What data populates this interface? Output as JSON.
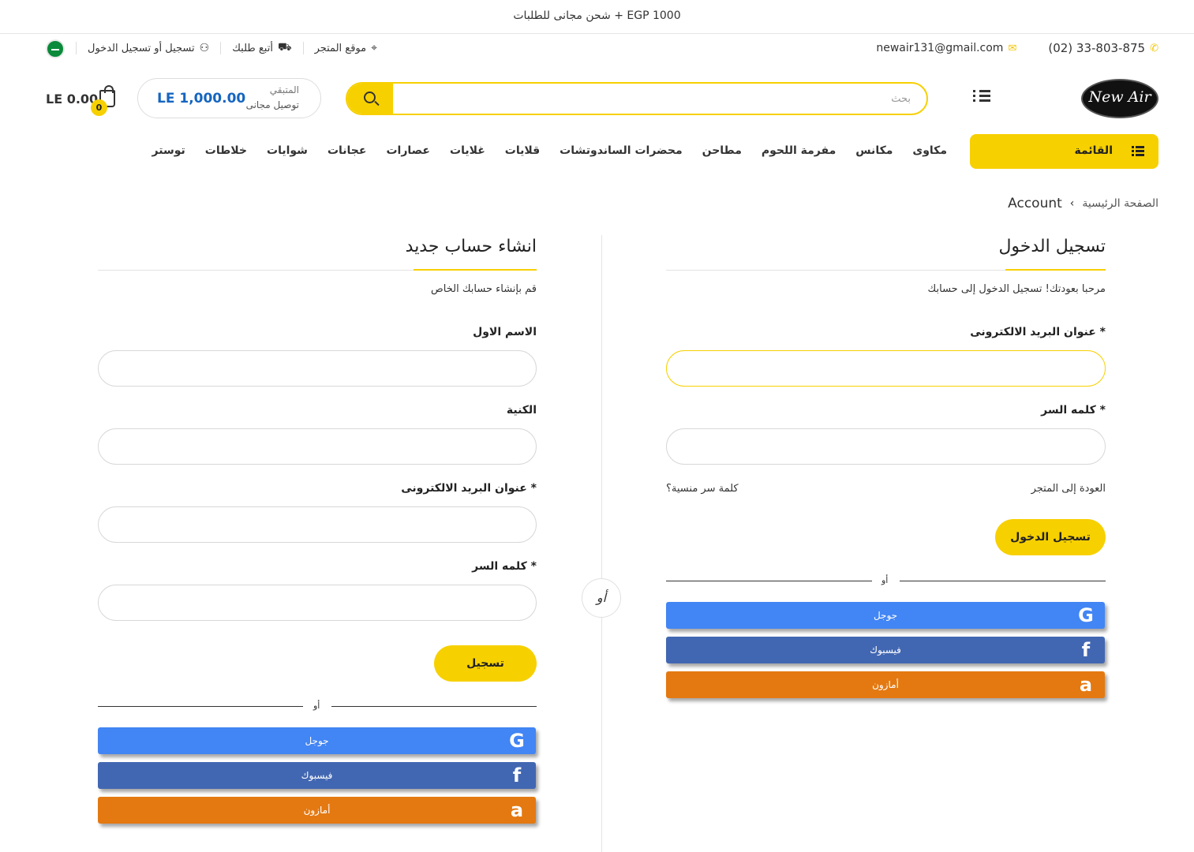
{
  "announcement": "شحن مجانى للطلبات + EGP 1000",
  "topbar": {
    "phone": "(02) 33-803-875",
    "email": "newair131@gmail.com",
    "store_location": "موقع المتجر",
    "track_order": "أتبع طلبك",
    "login_register": "تسجيل أو تسجيل الدخول"
  },
  "header": {
    "logo_text": "New Air",
    "search_placeholder": "بحث",
    "shipping": {
      "line1": "المتبقي",
      "line2": "توصيل مجانى",
      "amount": "LE 1,000.00"
    },
    "cart": {
      "total": "LE 0.00",
      "count": "0"
    }
  },
  "nav": {
    "categories_label": "القائمة",
    "links": [
      "مكاوى",
      "مكانس",
      "مفرمة اللحوم",
      "مطاحن",
      "محضرات الساندوتشات",
      "قلايات",
      "غلايات",
      "عصارات",
      "عجانات",
      "شوايات",
      "خلاطات",
      "توستر"
    ]
  },
  "breadcrumb": {
    "home": "الصفحة الرئيسية",
    "current": "Account"
  },
  "login": {
    "title": "تسجيل الدخول",
    "subtitle": "مرحبا بعودتك! تسجيل الدخول إلى حسابك",
    "email_label": "عنوان البريد الالكترونى *",
    "password_label": "كلمه السر *",
    "back_to_store": "العودة إلى المتجر",
    "forgot_password": "كلمة سر منسية؟",
    "submit": "تسجيل الدخول",
    "or": "أو",
    "google": "جوجل",
    "facebook": "فيسبوك",
    "amazon": "أمازون"
  },
  "or_center": "أو",
  "register": {
    "title": "انشاء حساب جديد",
    "subtitle": "قم بإنشاء حسابك الخاص",
    "first_name_label": "الاسم الاول",
    "last_name_label": "الكنية",
    "email_label": "عنوان البريد الالكترونى *",
    "password_label": "كلمه السر *",
    "submit": "تسجيل",
    "or": "أو",
    "google": "جوجل",
    "facebook": "فيسبوك",
    "amazon": "أمازون"
  },
  "colors": {
    "accent": "#f7d000",
    "google": "#4285f4",
    "facebook": "#4267b2",
    "amazon": "#e47911",
    "price": "#1565c0"
  }
}
